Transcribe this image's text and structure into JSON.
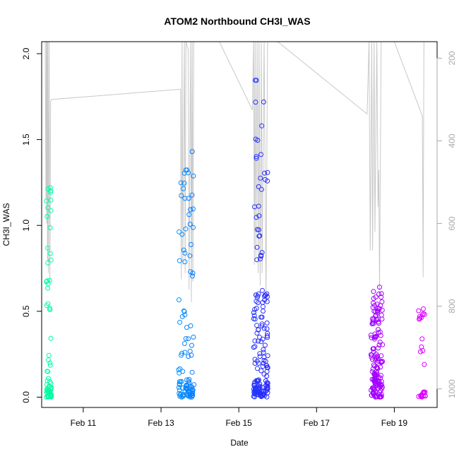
{
  "chart_data": {
    "type": "scatter",
    "title": "ATOM2 Northbound CH3I_WAS",
    "xlabel": "Date",
    "ylabel": "CH3I_WAS",
    "x_ticks": [
      {
        "day": 11,
        "label": "Feb 11"
      },
      {
        "day": 13,
        "label": "Feb 13"
      },
      {
        "day": 15,
        "label": "Feb 15"
      },
      {
        "day": 17,
        "label": "Feb 17"
      },
      {
        "day": 19,
        "label": "Feb 19"
      }
    ],
    "xlim_days": [
      9.93,
      20.1
    ],
    "ylim": [
      -0.06,
      2.07
    ],
    "y_ticks": [
      0.0,
      0.5,
      1.0,
      1.5,
      2.0
    ],
    "y_tick_labels": [
      "0.0",
      "0.5",
      "1.0",
      "1.5",
      "2.0"
    ],
    "secondary_axis": {
      "label": "",
      "reversed": true,
      "lim": [
        1045,
        160
      ],
      "ticks": [
        200,
        400,
        600,
        800,
        1000
      ],
      "tick_labels": [
        "200",
        "400",
        "600",
        "800",
        "1000"
      ],
      "color": "#aaaaaa"
    },
    "grid": false,
    "box": true,
    "legend": "none",
    "point_color_gradient": [
      "#00ffa0",
      "#00c8ff",
      "#1040ff",
      "#6a00ff",
      "#e000ff"
    ],
    "pressure_trace_color": "#c8c8c8",
    "flights": [
      {
        "day_start": 10.05,
        "day_end": 10.18,
        "n": 70,
        "clusters": [
          [
            0.0,
            0.06,
            0.45
          ],
          [
            0.05,
            0.35,
            0.2
          ],
          [
            0.5,
            1.0,
            0.22
          ],
          [
            1.05,
            1.31,
            0.13
          ]
        ]
      },
      {
        "day_start": 13.45,
        "day_end": 13.85,
        "n": 110,
        "clusters": [
          [
            0.0,
            0.08,
            0.45
          ],
          [
            0.08,
            0.6,
            0.28
          ],
          [
            0.7,
            1.1,
            0.15
          ],
          [
            1.15,
            1.44,
            0.12
          ]
        ]
      },
      {
        "day_start": 15.38,
        "day_end": 15.75,
        "n": 170,
        "clusters": [
          [
            0.0,
            0.1,
            0.4
          ],
          [
            0.1,
            0.65,
            0.42
          ],
          [
            0.8,
            1.15,
            0.08
          ],
          [
            1.2,
            1.99,
            0.1
          ]
        ]
      },
      {
        "day_start": 18.4,
        "day_end": 18.7,
        "n": 150,
        "clusters": [
          [
            0.0,
            0.12,
            0.4
          ],
          [
            0.12,
            0.45,
            0.4
          ],
          [
            0.45,
            0.68,
            0.2
          ]
        ]
      },
      {
        "day_start": 19.62,
        "day_end": 19.8,
        "n": 28,
        "clusters": [
          [
            0.0,
            0.03,
            0.5
          ],
          [
            0.1,
            0.52,
            0.5
          ]
        ]
      }
    ],
    "pressure_trace": [
      [
        10.02,
        160
      ],
      [
        10.04,
        540
      ],
      [
        10.05,
        160
      ],
      [
        10.06,
        600
      ],
      [
        10.07,
        160
      ],
      [
        10.08,
        690
      ],
      [
        10.09,
        160
      ],
      [
        10.1,
        720
      ],
      [
        10.12,
        160
      ],
      [
        10.14,
        750
      ],
      [
        10.16,
        305
      ],
      [
        10.18,
        300
      ],
      [
        13.5,
        275
      ],
      [
        13.52,
        735
      ],
      [
        13.54,
        160
      ],
      [
        13.56,
        700
      ],
      [
        13.6,
        160
      ],
      [
        13.62,
        720
      ],
      [
        13.64,
        160
      ],
      [
        13.7,
        180
      ],
      [
        13.72,
        760
      ],
      [
        13.76,
        160
      ],
      [
        13.78,
        790
      ],
      [
        13.8,
        160
      ],
      [
        13.82,
        740
      ],
      [
        13.84,
        160
      ],
      [
        14.5,
        160
      ],
      [
        15.35,
        325
      ],
      [
        15.38,
        160
      ],
      [
        15.4,
        700
      ],
      [
        15.42,
        160
      ],
      [
        15.44,
        680
      ],
      [
        15.47,
        160
      ],
      [
        15.5,
        720
      ],
      [
        15.52,
        160
      ],
      [
        15.55,
        750
      ],
      [
        15.58,
        160
      ],
      [
        15.6,
        720
      ],
      [
        15.65,
        160
      ],
      [
        15.7,
        780
      ],
      [
        15.74,
        160
      ],
      [
        16.0,
        160
      ],
      [
        18.3,
        335
      ],
      [
        18.35,
        160
      ],
      [
        18.38,
        665
      ],
      [
        18.42,
        160
      ],
      [
        18.44,
        665
      ],
      [
        18.48,
        160
      ],
      [
        18.5,
        620
      ],
      [
        18.55,
        160
      ],
      [
        18.58,
        560
      ],
      [
        18.6,
        470
      ],
      [
        18.62,
        760
      ],
      [
        18.66,
        160
      ],
      [
        19.0,
        160
      ],
      [
        19.72,
        340
      ],
      [
        19.74,
        730
      ],
      [
        19.76,
        160
      ]
    ]
  }
}
